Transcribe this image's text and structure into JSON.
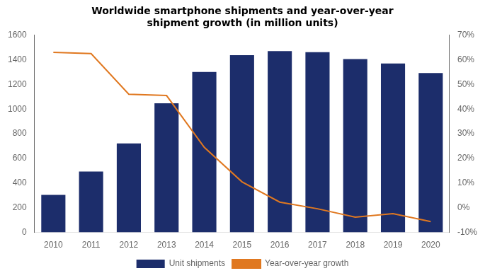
{
  "chart_data": {
    "type": "bar",
    "title": "Worldwide smartphone shipments and year-over-year\nshipment growth (in million units)",
    "categories": [
      "2010",
      "2011",
      "2012",
      "2013",
      "2014",
      "2015",
      "2016",
      "2017",
      "2018",
      "2019",
      "2020"
    ],
    "series": [
      {
        "name": "Unit shipments",
        "type": "bar",
        "color": "#1c2d6b",
        "values": [
          305,
          494,
          722,
          1047,
          1301,
          1437,
          1470,
          1462,
          1405,
          1370,
          1292
        ]
      },
      {
        "name": "Year-over-year growth",
        "type": "line",
        "color": "#e07820",
        "axis": "y2",
        "values": [
          0.63,
          0.625,
          0.46,
          0.455,
          0.245,
          0.105,
          0.023,
          -0.004,
          -0.038,
          -0.024,
          -0.056
        ]
      }
    ],
    "ylim": [
      0,
      1600
    ],
    "yticks": [
      0,
      200,
      400,
      600,
      800,
      1000,
      1200,
      1400,
      1600
    ],
    "y2lim": [
      -0.1,
      0.7
    ],
    "y2ticks": [
      {
        "value": -0.1,
        "label": "-10%"
      },
      {
        "value": 0.0,
        "label": "0%"
      },
      {
        "value": 0.1,
        "label": "10%"
      },
      {
        "value": 0.2,
        "label": "20%"
      },
      {
        "value": 0.3,
        "label": "30%"
      },
      {
        "value": 0.4,
        "label": "40%"
      },
      {
        "value": 0.5,
        "label": "50%"
      },
      {
        "value": 0.6,
        "label": "60%"
      },
      {
        "value": 0.7,
        "label": "70%"
      }
    ],
    "grid": false,
    "legend": "bottom"
  }
}
